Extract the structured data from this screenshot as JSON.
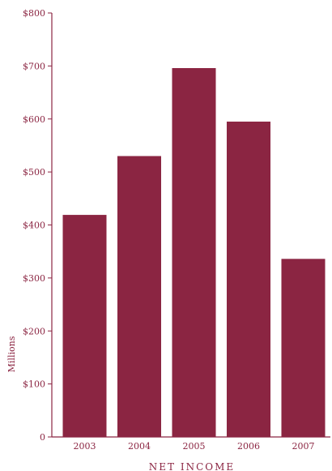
{
  "chart_data": {
    "type": "bar",
    "categories": [
      "2003",
      "2004",
      "2005",
      "2006",
      "2007"
    ],
    "values": [
      419,
      530,
      696,
      595,
      336
    ],
    "title": "",
    "caption": "NET INCOME",
    "xlabel": "",
    "ylabel": "Millions",
    "ylim": [
      0,
      800
    ],
    "yticks": [
      0,
      100,
      200,
      300,
      400,
      500,
      600,
      700,
      800
    ],
    "ytick_labels": [
      "0",
      "$100",
      "$200",
      "$300",
      "$400",
      "$500",
      "$600",
      "$700",
      "$800"
    ],
    "grid": false,
    "legend": "none"
  },
  "colors": {
    "bar": "#8b2542",
    "axis": "#8b2542",
    "text": "#8b2542"
  }
}
